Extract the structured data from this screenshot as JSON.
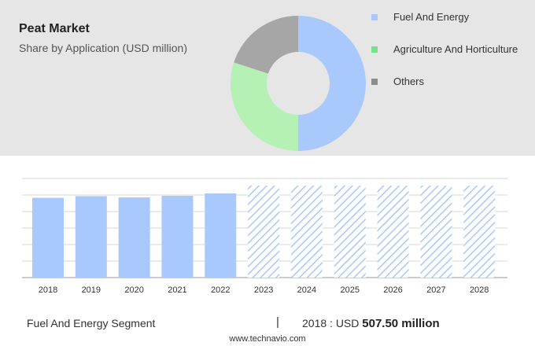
{
  "header": {
    "title": "Peat Market",
    "subtitle": "Share by Application (USD million)"
  },
  "colors": {
    "fuel": "#a9c8fb",
    "agriculture": "#b5f0b5",
    "others": "#a6a6a6",
    "bar": "#a9c8fb",
    "forecast_hatch": "#a9c8fb",
    "panel": "#e6e6e6"
  },
  "legend": [
    {
      "label": "Fuel And Energy",
      "color": "#a9c8fb"
    },
    {
      "label": "Agriculture And Horticulture",
      "color": "#77e08a"
    },
    {
      "label": "Others",
      "color": "#8c8c8c"
    }
  ],
  "chart_data": [
    {
      "type": "pie",
      "variant": "donut",
      "title": "Peat Market",
      "subtitle": "Share by Application (USD million)",
      "categories": [
        "Fuel And Energy",
        "Agriculture And Horticulture",
        "Others"
      ],
      "values": [
        50,
        30,
        20
      ]
    },
    {
      "type": "bar",
      "categories": [
        "2018",
        "2019",
        "2020",
        "2021",
        "2022",
        "2023",
        "2024",
        "2025",
        "2026",
        "2027",
        "2028"
      ],
      "values": [
        507.5,
        518,
        510,
        520,
        535,
        null,
        null,
        null,
        null,
        null,
        null
      ],
      "forecast_categories": [
        "2023",
        "2024",
        "2025",
        "2026",
        "2027",
        "2028"
      ],
      "grid": true,
      "ylim": [
        0,
        640
      ]
    }
  ],
  "footer": {
    "segment": "Fuel And Energy Segment",
    "divider": "|",
    "year_prefix": "2018 : USD",
    "amount": "507.50 million",
    "source": "www.technavio.com"
  }
}
